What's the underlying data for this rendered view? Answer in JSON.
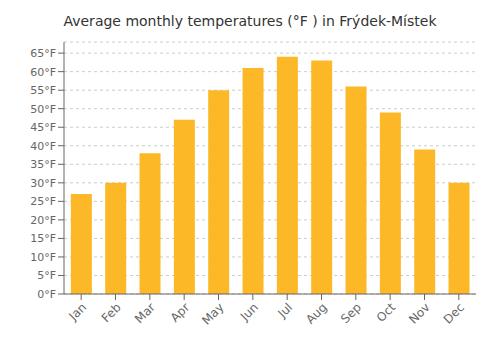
{
  "chart_data": {
    "type": "bar",
    "title": "Average monthly temperatures (°F ) in Frýdek-Místek",
    "categories": [
      "Jan",
      "Feb",
      "Mar",
      "Apr",
      "May",
      "Jun",
      "Jul",
      "Aug",
      "Sep",
      "Oct",
      "Nov",
      "Dec"
    ],
    "values": [
      27,
      30,
      38,
      47,
      55,
      61,
      64,
      63,
      56,
      49,
      39,
      30
    ],
    "color": "#FDB827",
    "ylim": [
      0,
      68
    ],
    "yticks": [
      {
        "value": 0,
        "label": "0°F"
      },
      {
        "value": 5,
        "label": "5°F"
      },
      {
        "value": 10,
        "label": "10°F"
      },
      {
        "value": 15,
        "label": "15°F"
      },
      {
        "value": 20,
        "label": "20°F"
      },
      {
        "value": 25,
        "label": "25°F"
      },
      {
        "value": 30,
        "label": "30°F"
      },
      {
        "value": 35,
        "label": "35°F"
      },
      {
        "value": 40,
        "label": "40°F"
      },
      {
        "value": 45,
        "label": "45°F"
      },
      {
        "value": 50,
        "label": "50°F"
      },
      {
        "value": 55,
        "label": "55°F"
      },
      {
        "value": 60,
        "label": "60°F"
      },
      {
        "value": 65,
        "label": "65°F"
      }
    ],
    "grid": true
  }
}
